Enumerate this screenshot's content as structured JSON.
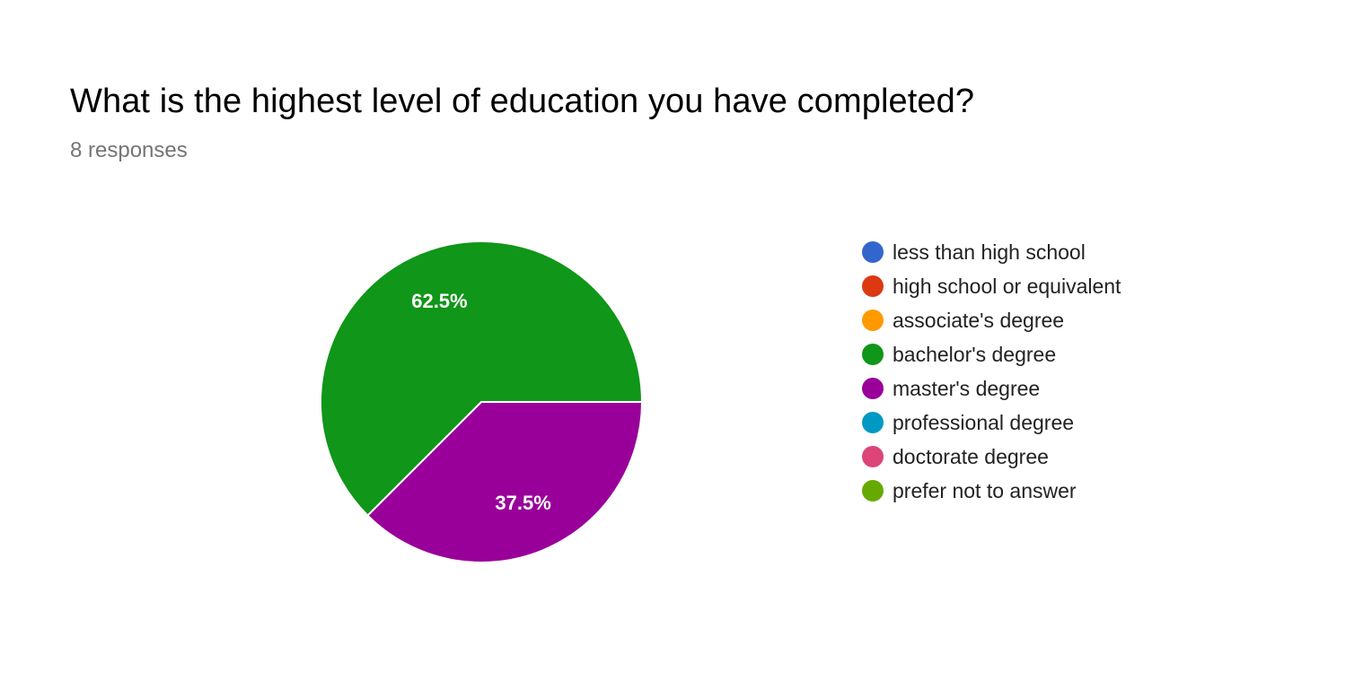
{
  "header": {
    "title": "What is the highest level of education you have completed?",
    "responses": "8 responses"
  },
  "chart_data": {
    "type": "pie",
    "categories": [
      "less than high school",
      "high school or equivalent",
      "associate's degree",
      "bachelor's degree",
      "master's degree",
      "professional degree",
      "doctorate degree",
      "prefer not to answer"
    ],
    "values": [
      0,
      0,
      0,
      62.5,
      37.5,
      0,
      0,
      0
    ],
    "data_labels": [
      "",
      "",
      "",
      "62.5%",
      "37.5%",
      "",
      "",
      ""
    ],
    "colors": [
      "#3366cc",
      "#dc3912",
      "#ff9900",
      "#109618",
      "#990099",
      "#0099c6",
      "#dd4477",
      "#66aa00"
    ],
    "legend_position": "right"
  }
}
